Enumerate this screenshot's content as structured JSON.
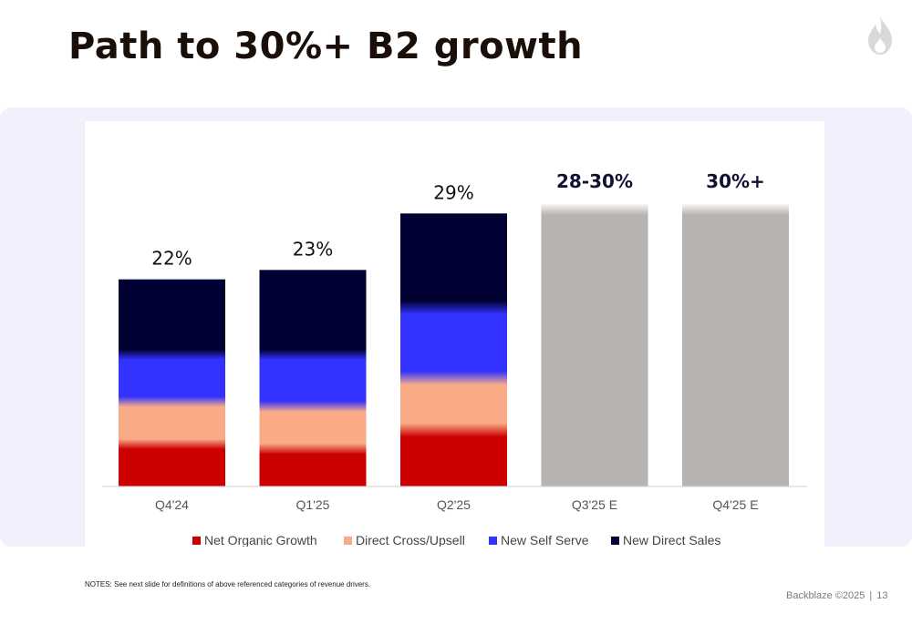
{
  "slide": {
    "title": "Path to 30%+ B2 growth",
    "notes": "NOTES:  See next slide for definitions of above referenced categories of revenue drivers.",
    "footer_brand": "Backblaze ©2025",
    "page_number": "13",
    "logo_icon": "flame-icon",
    "colors": {
      "title": "#1a0e08",
      "panel": "#f2f0fc",
      "logo": "#d9d9d9"
    }
  },
  "chart_data": {
    "type": "bar",
    "stacked": true,
    "categories": [
      "Q4'24",
      "Q1'25",
      "Q2'25",
      "Q3'25 E",
      "Q4'25 E"
    ],
    "total_labels": [
      "22%",
      "23%",
      "29%",
      "28-30%",
      "30%+"
    ],
    "totals": [
      22,
      23,
      29,
      30,
      30
    ],
    "series": [
      {
        "name": "Net Organic Growth",
        "color": "#cc0000",
        "values": [
          4.5,
          4,
          6,
          null,
          null
        ]
      },
      {
        "name": "Direct Cross/Upsell",
        "color": "#f9ab88",
        "values": [
          4.5,
          4.5,
          5.5,
          null,
          null
        ]
      },
      {
        "name": "New Self Serve",
        "color": "#3333ff",
        "values": [
          5,
          5.5,
          7.5,
          null,
          null
        ]
      },
      {
        "name": "New Direct Sales",
        "color": "#000033",
        "values": [
          8,
          9,
          10,
          null,
          null
        ]
      },
      {
        "name": "",
        "color": "#b7b3b0",
        "values": [
          null,
          null,
          null,
          30,
          30
        ]
      }
    ],
    "legend_entries": [
      "Net Organic Growth",
      "Direct Cross/Upsell",
      "New Self Serve",
      "New Direct Sales"
    ],
    "legend_position": "bottom",
    "grid": false,
    "ylim": [
      0,
      33
    ]
  }
}
